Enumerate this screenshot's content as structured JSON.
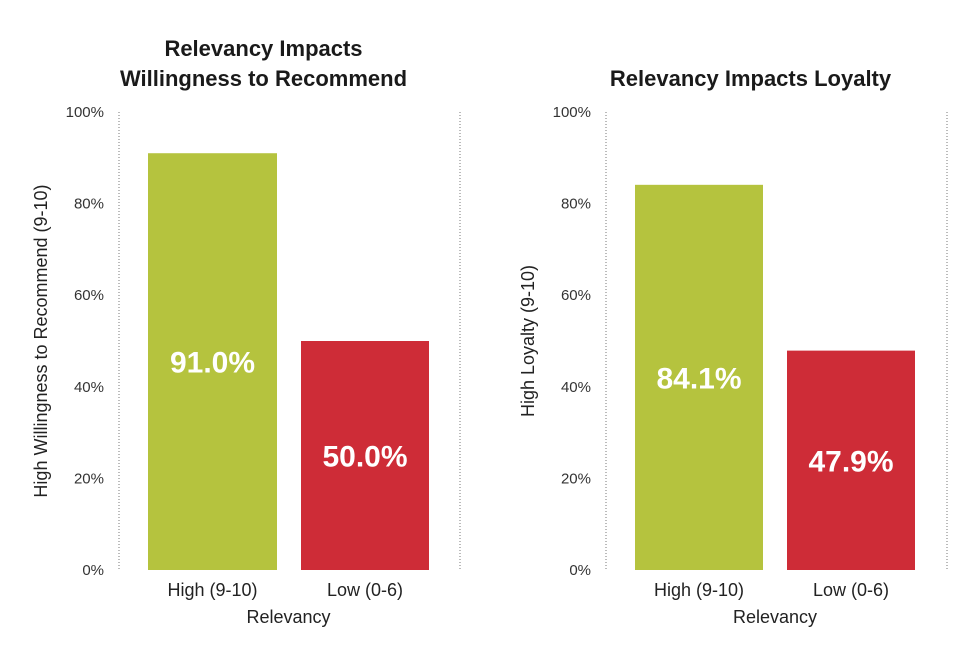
{
  "chart_data": [
    {
      "type": "bar",
      "title_lines": [
        "Relevancy Impacts",
        "Willingness to Recommend"
      ],
      "xlabel": "Relevancy",
      "ylabel": "High Willingness to Recommend (9-10)",
      "categories": [
        "High (9-10)",
        "Low (0-6)"
      ],
      "values": [
        91.0,
        50.0
      ],
      "value_labels": [
        "91.0%",
        "50.0%"
      ],
      "colors": [
        "#b5c33e",
        "#ce2c37"
      ],
      "ylim": [
        0,
        100
      ],
      "yticks": [
        0,
        20,
        40,
        60,
        80,
        100
      ],
      "ytick_labels": [
        "0%",
        "20%",
        "40%",
        "60%",
        "80%",
        "100%"
      ]
    },
    {
      "type": "bar",
      "title_lines": [
        "Relevancy Impacts Loyalty"
      ],
      "xlabel": "Relevancy",
      "ylabel": "High Loyalty (9-10)",
      "categories": [
        "High (9-10)",
        "Low (0-6)"
      ],
      "values": [
        84.1,
        47.9
      ],
      "value_labels": [
        "84.1%",
        "47.9%"
      ],
      "colors": [
        "#b5c33e",
        "#ce2c37"
      ],
      "ylim": [
        0,
        100
      ],
      "yticks": [
        0,
        20,
        40,
        60,
        80,
        100
      ],
      "ytick_labels": [
        "0%",
        "20%",
        "40%",
        "60%",
        "80%",
        "100%"
      ]
    }
  ]
}
